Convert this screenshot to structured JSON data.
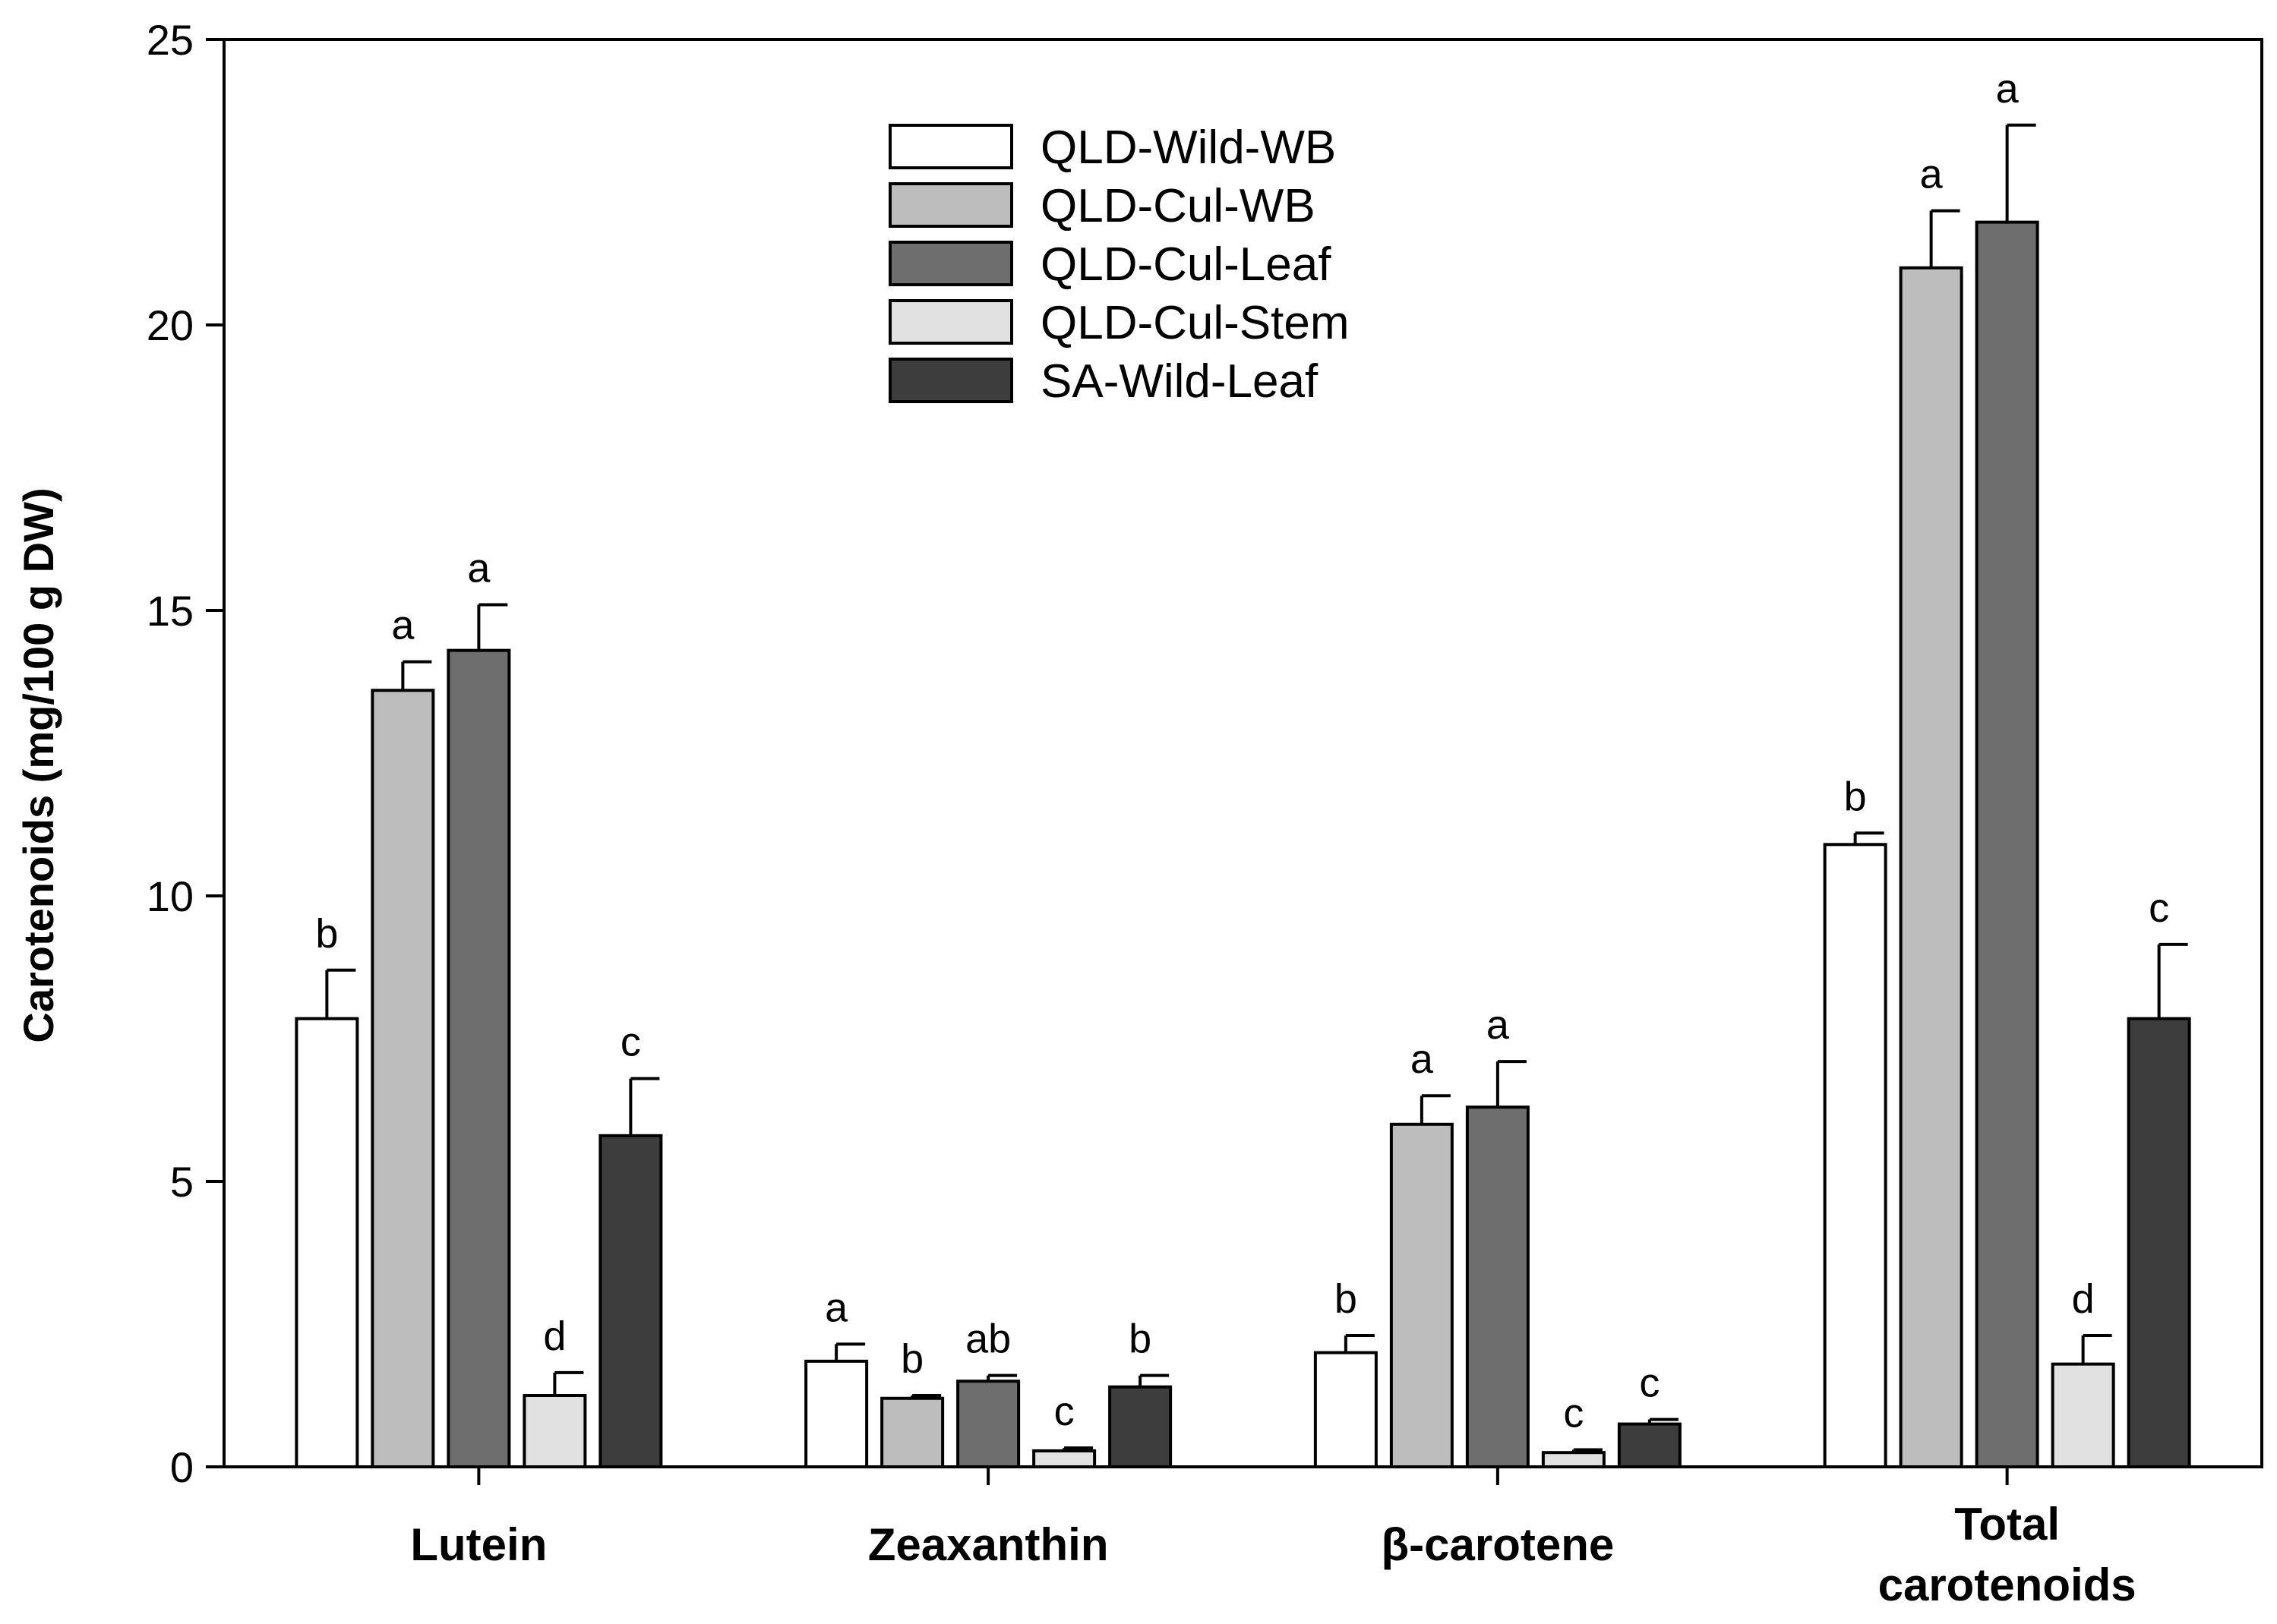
{
  "chart_data": {
    "type": "bar",
    "title": "",
    "ylabel": "Carotenoids (mg/100 g DW)",
    "xlabel": "",
    "ylim": [
      0,
      25
    ],
    "yticks": [
      "0",
      "5",
      "10",
      "15",
      "20",
      "25"
    ],
    "categories": [
      {
        "lines": [
          "Lutein"
        ]
      },
      {
        "lines": [
          "Zeaxanthin"
        ]
      },
      {
        "lines": [
          "β-carotene"
        ]
      },
      {
        "lines": [
          "Total",
          "carotenoids"
        ]
      }
    ],
    "legend_position": "top-center",
    "series": [
      {
        "name": "QLD-Wild-WB",
        "color": "#ffffff",
        "values": [
          7.85,
          1.85,
          2.0,
          10.9
        ],
        "errors": [
          0.85,
          0.3,
          0.3,
          0.2
        ],
        "labels": [
          "b",
          "a",
          "b",
          "b"
        ]
      },
      {
        "name": "QLD-Cul-WB",
        "color": "#bdbdbd",
        "values": [
          13.6,
          1.2,
          6.0,
          21.0
        ],
        "errors": [
          0.5,
          0.05,
          0.5,
          1.0
        ],
        "labels": [
          "a",
          "b",
          "a",
          "a"
        ]
      },
      {
        "name": "QLD-Cul-Leaf",
        "color": "#6e6e6e",
        "values": [
          14.3,
          1.5,
          6.3,
          21.8
        ],
        "errors": [
          0.8,
          0.1,
          0.8,
          1.7
        ],
        "labels": [
          "a",
          "ab",
          "a",
          "a"
        ]
      },
      {
        "name": "QLD-Cul-Stem",
        "color": "#e1e1e1",
        "values": [
          1.25,
          0.28,
          0.25,
          1.8
        ],
        "errors": [
          0.4,
          0.05,
          0.05,
          0.5
        ],
        "labels": [
          "d",
          "c",
          "c",
          "d"
        ]
      },
      {
        "name": "SA-Wild-Leaf",
        "color": "#3d3d3d",
        "values": [
          5.8,
          1.4,
          0.75,
          7.85
        ],
        "errors": [
          1.0,
          0.2,
          0.08,
          1.3
        ],
        "labels": [
          "c",
          "b",
          "c",
          "c"
        ]
      }
    ]
  }
}
